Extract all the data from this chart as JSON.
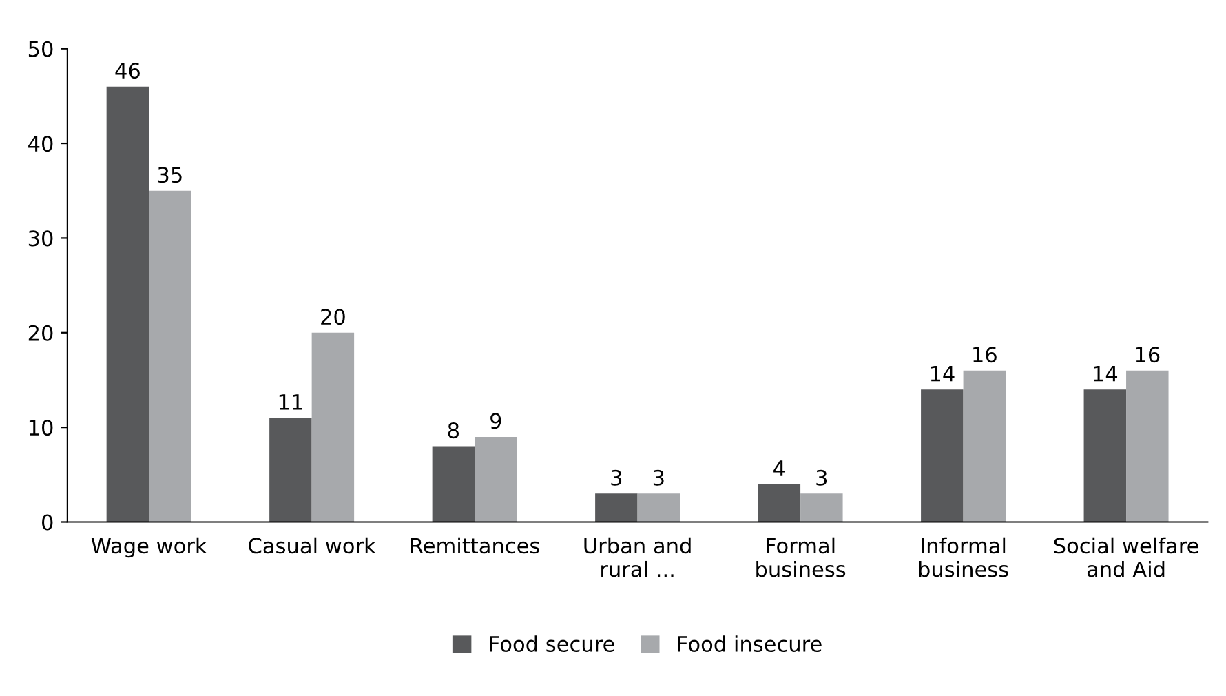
{
  "chart_data": {
    "type": "bar",
    "categories": [
      "Wage work",
      "Casual work",
      "Remittances",
      "Urban and\nrural ...",
      "Formal\nbusiness",
      "Informal\nbusiness",
      "Social welfare\nand Aid"
    ],
    "series": [
      {
        "name": "Food secure",
        "color": "#58595b",
        "values": [
          46,
          11,
          8,
          3,
          4,
          14,
          14
        ]
      },
      {
        "name": "Food insecure",
        "color": "#a7a9ac",
        "values": [
          35,
          20,
          9,
          3,
          3,
          16,
          16
        ]
      }
    ],
    "ylim": [
      0,
      50
    ],
    "yticks": [
      0,
      10,
      20,
      30,
      40,
      50
    ],
    "grid": false,
    "legend": "bottom",
    "data_labels": true
  }
}
